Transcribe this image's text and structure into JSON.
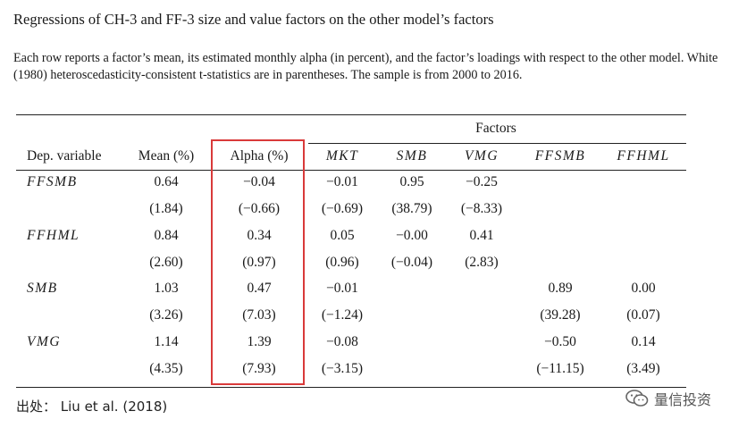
{
  "title": "Regressions of CH-3 and FF-3 size and value factors on the other model’s factors",
  "description": "Each row reports a factor’s mean, its estimated monthly alpha (in percent), and the factor’s loadings with respect to the other model. White (1980) heteroscedasticity-consistent t-statistics are in parentheses. The sample is from 2000 to 2016.",
  "table": {
    "group_header": "Factors",
    "columns": [
      "Dep. variable",
      "Mean (%)",
      "Alpha (%)",
      "MKT",
      "SMB",
      "VMG",
      "FFSMB",
      "FFHML"
    ],
    "rows": [
      {
        "var": "FFSMB",
        "coef": [
          "0.64",
          "−0.04",
          "−0.01",
          "0.95",
          "−0.25",
          "",
          ""
        ],
        "tstat": [
          "(1.84)",
          "(−0.66)",
          "(−0.69)",
          "(38.79)",
          "(−8.33)",
          "",
          ""
        ]
      },
      {
        "var": "FFHML",
        "coef": [
          "0.84",
          "0.34",
          "0.05",
          "−0.00",
          "0.41",
          "",
          ""
        ],
        "tstat": [
          "(2.60)",
          "(0.97)",
          "(0.96)",
          "(−0.04)",
          "(2.83)",
          "",
          ""
        ]
      },
      {
        "var": "SMB",
        "coef": [
          "1.03",
          "0.47",
          "−0.01",
          "",
          "",
          "0.89",
          "0.00"
        ],
        "tstat": [
          "(3.26)",
          "(7.03)",
          "(−1.24)",
          "",
          "",
          "(39.28)",
          "(0.07)"
        ]
      },
      {
        "var": "VMG",
        "coef": [
          "1.14",
          "1.39",
          "−0.08",
          "",
          "",
          "−0.50",
          "0.14"
        ],
        "tstat": [
          "(4.35)",
          "(7.93)",
          "(−3.15)",
          "",
          "",
          "(−11.15)",
          "(3.49)"
        ]
      }
    ]
  },
  "source": "出处： Liu et al. (2018)",
  "watermark": "量信投资",
  "highlight_color": "#d93a3a",
  "watermark_icon": "wechat-icon"
}
